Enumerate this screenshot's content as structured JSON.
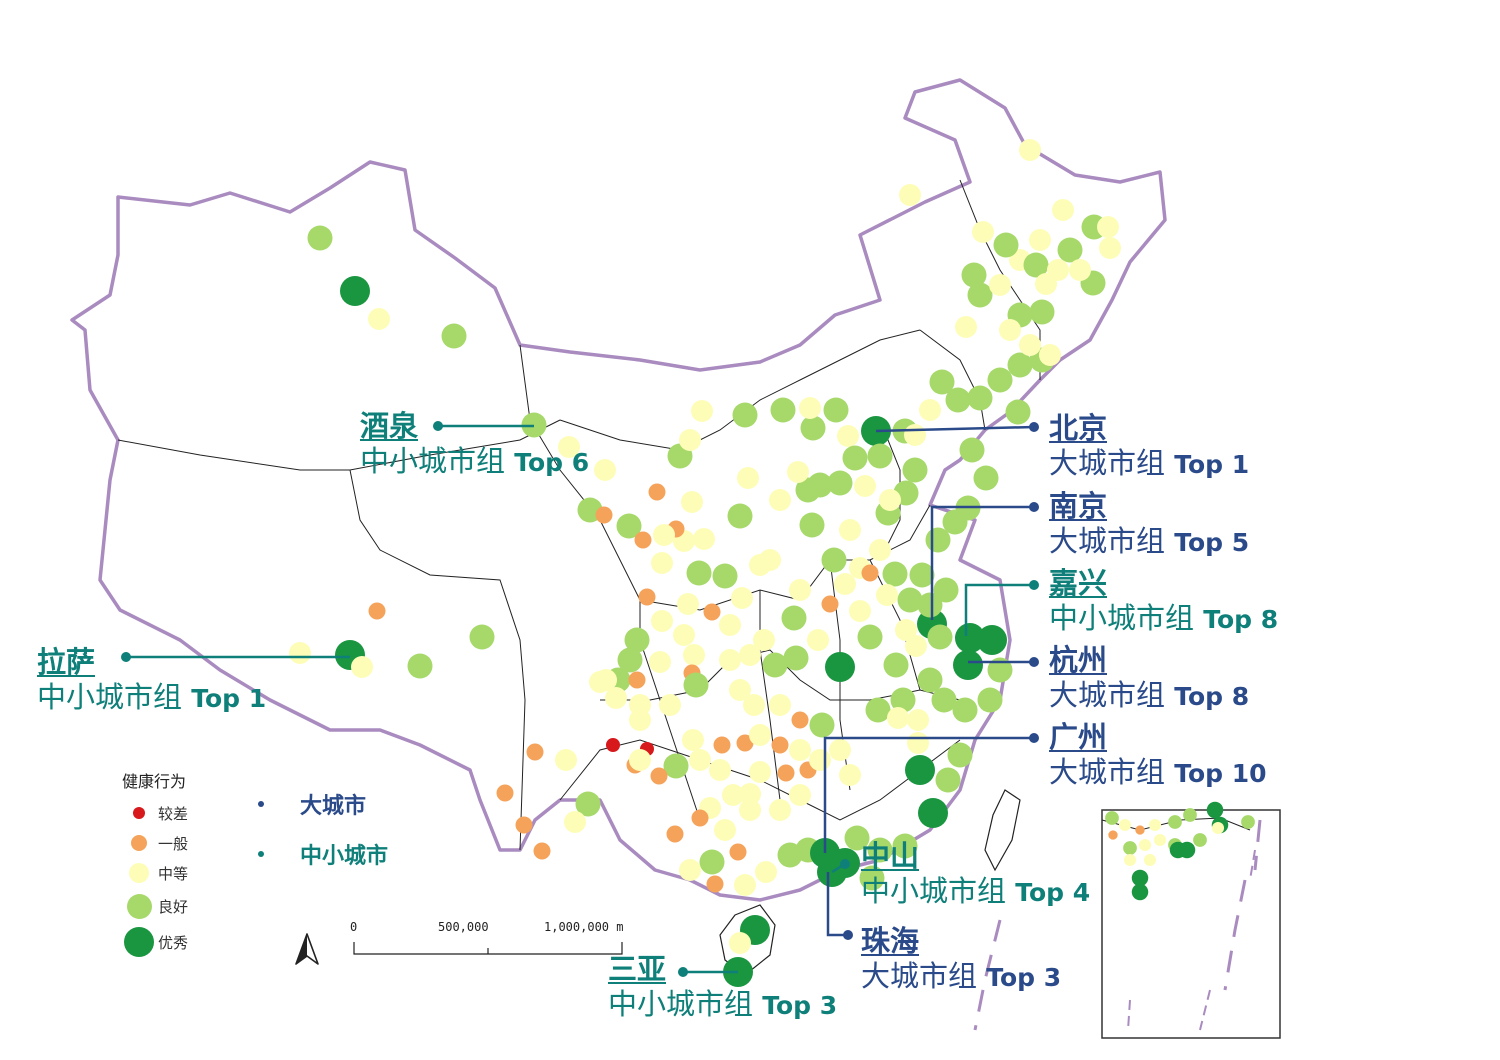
{
  "legend": {
    "title": "健康行为",
    "items": [
      {
        "label": "较差",
        "color": "#d7191c",
        "size": 12
      },
      {
        "label": "一般",
        "color": "#f5a35a",
        "size": 16
      },
      {
        "label": "中等",
        "color": "#fdfdb8",
        "size": 20
      },
      {
        "label": "良好",
        "color": "#a6d96a",
        "size": 25
      },
      {
        "label": "优秀",
        "color": "#1a9641",
        "size": 30
      }
    ]
  },
  "city_types": [
    {
      "label": "大城市",
      "color": "#2a4a8a"
    },
    {
      "label": "中小城市",
      "color": "#0f7f7a"
    }
  ],
  "callouts": [
    {
      "name": "酒泉",
      "group": "中小城市组",
      "rank": "Top 6",
      "type": "small"
    },
    {
      "name": "北京",
      "group": "大城市组",
      "rank": "Top 1",
      "type": "large"
    },
    {
      "name": "南京",
      "group": "大城市组",
      "rank": "Top 5",
      "type": "large"
    },
    {
      "name": "嘉兴",
      "group": "中小城市组",
      "rank": "Top 8",
      "type": "small"
    },
    {
      "name": "杭州",
      "group": "大城市组",
      "rank": "Top 8",
      "type": "large"
    },
    {
      "name": "广州",
      "group": "大城市组",
      "rank": "Top 10",
      "type": "large"
    },
    {
      "name": "拉萨",
      "group": "中小城市组",
      "rank": "Top 1",
      "type": "small"
    },
    {
      "name": "中山",
      "group": "中小城市组",
      "rank": "Top 4",
      "type": "small"
    },
    {
      "name": "珠海",
      "group": "大城市组",
      "rank": "Top 3",
      "type": "large"
    },
    {
      "name": "三亚",
      "group": "中小城市组",
      "rank": "Top 3",
      "type": "small"
    }
  ],
  "scale_bar": {
    "labels": [
      "0",
      "500,000",
      "1,000,000 m"
    ]
  },
  "colors": {
    "border": "#a98bc0",
    "province": "#222222",
    "large_city": "#2a4a8a",
    "small_city": "#0f7f7a"
  }
}
